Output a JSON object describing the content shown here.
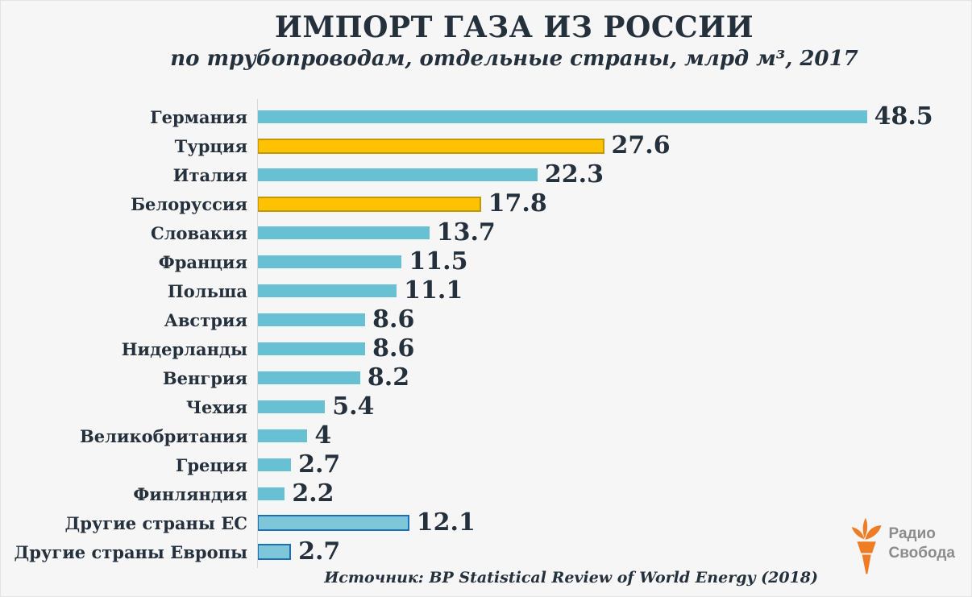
{
  "header": {
    "title": "ИМПОРТ ГАЗА ИЗ РОССИИ",
    "subtitle": "по трубопроводам, отдельные страны, млрд м³, 2017"
  },
  "footer": {
    "source": "Источник: BP Statistical Review of World Energy (2018)"
  },
  "logo": {
    "name": "Радио Свобода",
    "line1": "Радио",
    "line2": "Свобода",
    "torch_color": "#ef7d25",
    "text_color": "#8c8c8c"
  },
  "chart_data": {
    "type": "bar",
    "orientation": "horizontal",
    "title": "ИМПОРТ ГАЗА ИЗ РОССИИ",
    "subtitle": "по трубопроводам, отдельные страны, млрд м³, 2017",
    "source": "Источник: BP Statistical Review of World Energy (2018)",
    "categories": [
      "Германия",
      "Турция",
      "Италия",
      "Белоруссия",
      "Словакия",
      "Франция",
      "Польша",
      "Австрия",
      "Нидерланды",
      "Венгрия",
      "Чехия",
      "Великобритания",
      "Греция",
      "Финляндия",
      "Другие страны ЕС",
      "Другие страны Европы"
    ],
    "values": [
      48.5,
      27.6,
      22.3,
      17.8,
      13.7,
      11.5,
      11.1,
      8.6,
      8.6,
      8.2,
      5.4,
      4,
      2.7,
      2.2,
      12.1,
      2.7
    ],
    "bar_styles": [
      "default",
      "highlight",
      "default",
      "highlight",
      "default",
      "default",
      "default",
      "default",
      "default",
      "default",
      "default",
      "default",
      "default",
      "default",
      "outlined",
      "outlined"
    ],
    "xlim": [
      0,
      50
    ],
    "grid": false,
    "value_labels": true,
    "legend": "none",
    "colors": {
      "background": "#f6f6f6",
      "text": "#25303d",
      "bar_default": "#68c1d3",
      "bar_highlight_fill": "#fec203",
      "bar_highlight_border": "#c39805",
      "bar_outlined_fill": "#7ec7d8",
      "bar_outlined_border": "#1c70b8",
      "axis_line": "#d8d8d8"
    }
  }
}
